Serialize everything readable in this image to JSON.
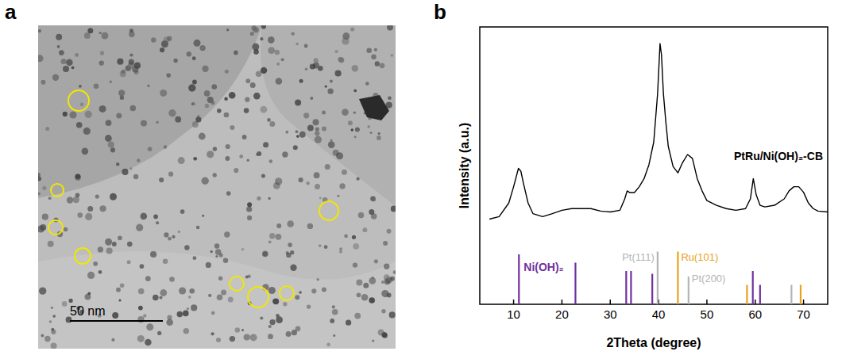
{
  "figure": {
    "panel_a": {
      "label": "a",
      "scale_bar": "50 nm"
    }
  },
  "chart_data": {
    "type": "line",
    "panel_label": "b",
    "x_label": "2Theta (degree)",
    "y_label": "Intensity (a.u.)",
    "xlim": [
      3,
      75
    ],
    "xticks": [
      10,
      20,
      30,
      40,
      50,
      60,
      70
    ],
    "ylim": [
      0,
      100
    ],
    "yticks": [],
    "tick_labels": "x",
    "grid": false,
    "series": [
      {
        "name": "PtRu/Ni(OH)₂-CB",
        "type": "line",
        "color": "#000000",
        "x": [
          5,
          7,
          9,
          10,
          11,
          11.5,
          12,
          13,
          14,
          16,
          18,
          20,
          22,
          24,
          26,
          28,
          30,
          32,
          33,
          33.5,
          34,
          35,
          36,
          37,
          38,
          39,
          39.8,
          40.3,
          40.6,
          41,
          41.5,
          42,
          43,
          44,
          45,
          46,
          47,
          48,
          49,
          50,
          52,
          54,
          56,
          58,
          59,
          59.6,
          60.2,
          61,
          62,
          64,
          66,
          67,
          68,
          69,
          70,
          71,
          72,
          73,
          75
        ],
        "values": [
          30.7,
          31.6,
          36.5,
          42.4,
          49,
          48,
          43.9,
          36.5,
          32.7,
          31.6,
          32.7,
          33.9,
          34.5,
          34.5,
          34.5,
          33.6,
          33.3,
          33.9,
          38,
          40.9,
          40.3,
          40.3,
          42.4,
          45.3,
          50.3,
          58.5,
          76,
          94,
          90,
          76,
          65.8,
          57,
          49.7,
          47.4,
          51.2,
          54,
          52.6,
          45.3,
          40.9,
          37.4,
          35.7,
          34.5,
          33.9,
          34.5,
          38,
          45.3,
          39.5,
          35.7,
          35.1,
          35.7,
          38,
          40.9,
          42.4,
          42.4,
          40.4,
          36.5,
          34.5,
          33.6,
          33.3
        ]
      },
      {
        "name": "Ni(OH)₂",
        "type": "stem",
        "color": "#7030a0",
        "x": [
          11.1,
          22.8,
          33.3,
          34.3,
          38.7,
          59.5,
          61.0
        ],
        "values": [
          18,
          15,
          12,
          12,
          11,
          12,
          7
        ]
      },
      {
        "type": "stem",
        "color": "#b4b4b4",
        "x": [
          39.8,
          46.2,
          67.5
        ],
        "values": [
          19,
          10,
          7
        ],
        "peak_labels": [
          "Pt(111)",
          "Pt(200)",
          null
        ]
      },
      {
        "type": "stem",
        "color": "#e8a21c",
        "x": [
          44.0,
          58.3,
          69.4
        ],
        "values": [
          19,
          7,
          7
        ],
        "peak_labels": [
          "Ru(101)",
          null,
          null
        ]
      }
    ]
  }
}
